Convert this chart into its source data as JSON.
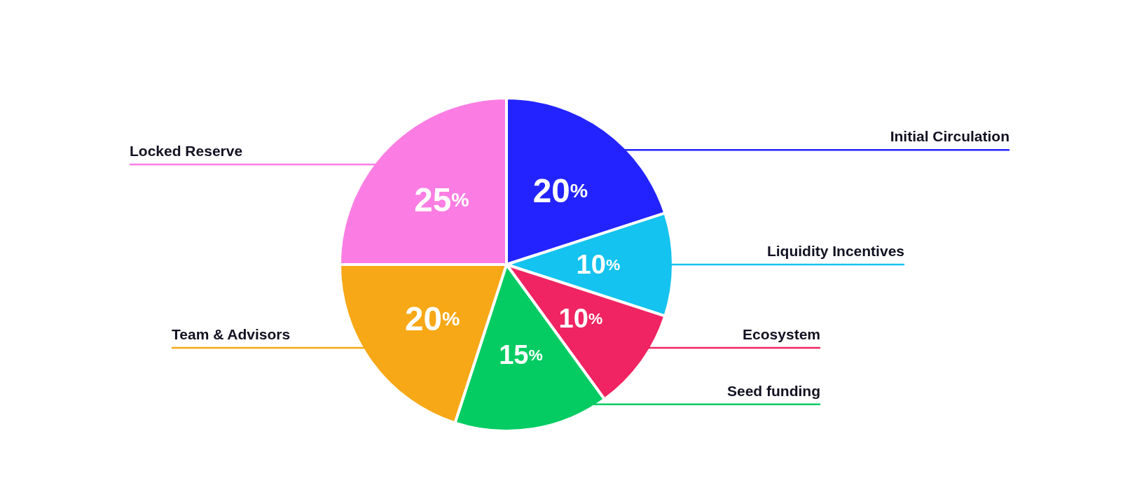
{
  "chart_data": {
    "type": "pie",
    "categories": [
      "Initial Circulation",
      "Liquidity Incentives",
      "Ecosystem",
      "Seed funding",
      "Team & Advisors",
      "Locked Reserve"
    ],
    "values": [
      20,
      10,
      10,
      15,
      20,
      25
    ],
    "colors": [
      "#2323ff",
      "#14c3ef",
      "#f02462",
      "#05cc62",
      "#f7a816",
      "#fb7de3"
    ],
    "value_labels": [
      "20%",
      "10%",
      "10%",
      "15%",
      "20%",
      "25%"
    ],
    "legend": false
  }
}
